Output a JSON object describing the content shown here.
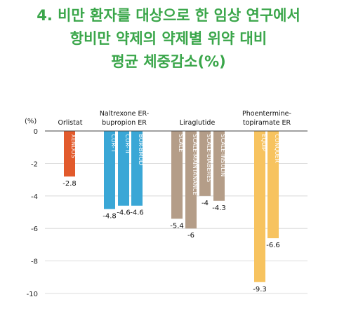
{
  "title_lines": [
    "4. 비만 환자를 대상으로 한 임상 연구에서",
    "항비만 약제의 약제별 위약 대비",
    "평균 체중감소(%)"
  ],
  "colors": {
    "title": "#3aa64a",
    "Orlistat": "#e25a2c",
    "Naltrexone ER-bupropion ER": "#3aa7d6",
    "Liraglutide": "#b49d88",
    "Phoentermine-topiramate ER": "#f7c35f"
  },
  "chart_data": {
    "type": "bar",
    "title": "4. 비만 환자를 대상으로 한 임상 연구에서 항비만 약제의 약제별 위약 대비 평균 체중감소(%)",
    "yunit": "(%)",
    "ylim": [
      -10,
      0
    ],
    "yticks": [
      0,
      -2,
      -4,
      -6,
      -8,
      -10
    ],
    "grid": true,
    "groups": [
      {
        "name": "Orlistat",
        "name_lines": [
          "Orlistat"
        ],
        "bars": [
          {
            "label": "XENDOS",
            "value": -2.8,
            "value_label": "-2.8"
          }
        ]
      },
      {
        "name": "Naltrexone ER-bupropion ER",
        "name_lines": [
          "Naltrexone ER-",
          "bupropion ER"
        ],
        "bars": [
          {
            "label": "COR- I",
            "value": -4.8,
            "value_label": "-4.8"
          },
          {
            "label": "COR- II",
            "value": -4.6,
            "value_label": "-4.6"
          },
          {
            "label": "BOR-BMOD",
            "value": -4.6,
            "value_label": "-4.6"
          }
        ]
      },
      {
        "name": "Liraglutide",
        "name_lines": [
          "Liraglutide"
        ],
        "bars": [
          {
            "label": "SCALE",
            "value": -5.4,
            "value_label": "-5.4"
          },
          {
            "label": "SCALE-MAINTANANCE",
            "value": -6,
            "value_label": "-6"
          },
          {
            "label": "SCALE-DIABERES",
            "value": -4,
            "value_label": "-4"
          },
          {
            "label": "SCALE-INSULIN",
            "value": -4.3,
            "value_label": "-4.3"
          }
        ]
      },
      {
        "name": "Phoentermine-topiramate ER",
        "name_lines": [
          "Phoentermine-",
          "topiramate ER"
        ],
        "bars": [
          {
            "label": "EQUIP",
            "value": -9.3,
            "value_label": "-9.3"
          },
          {
            "label": "CONQUER",
            "value": -6.6,
            "value_label": "-6.6"
          }
        ]
      }
    ]
  }
}
